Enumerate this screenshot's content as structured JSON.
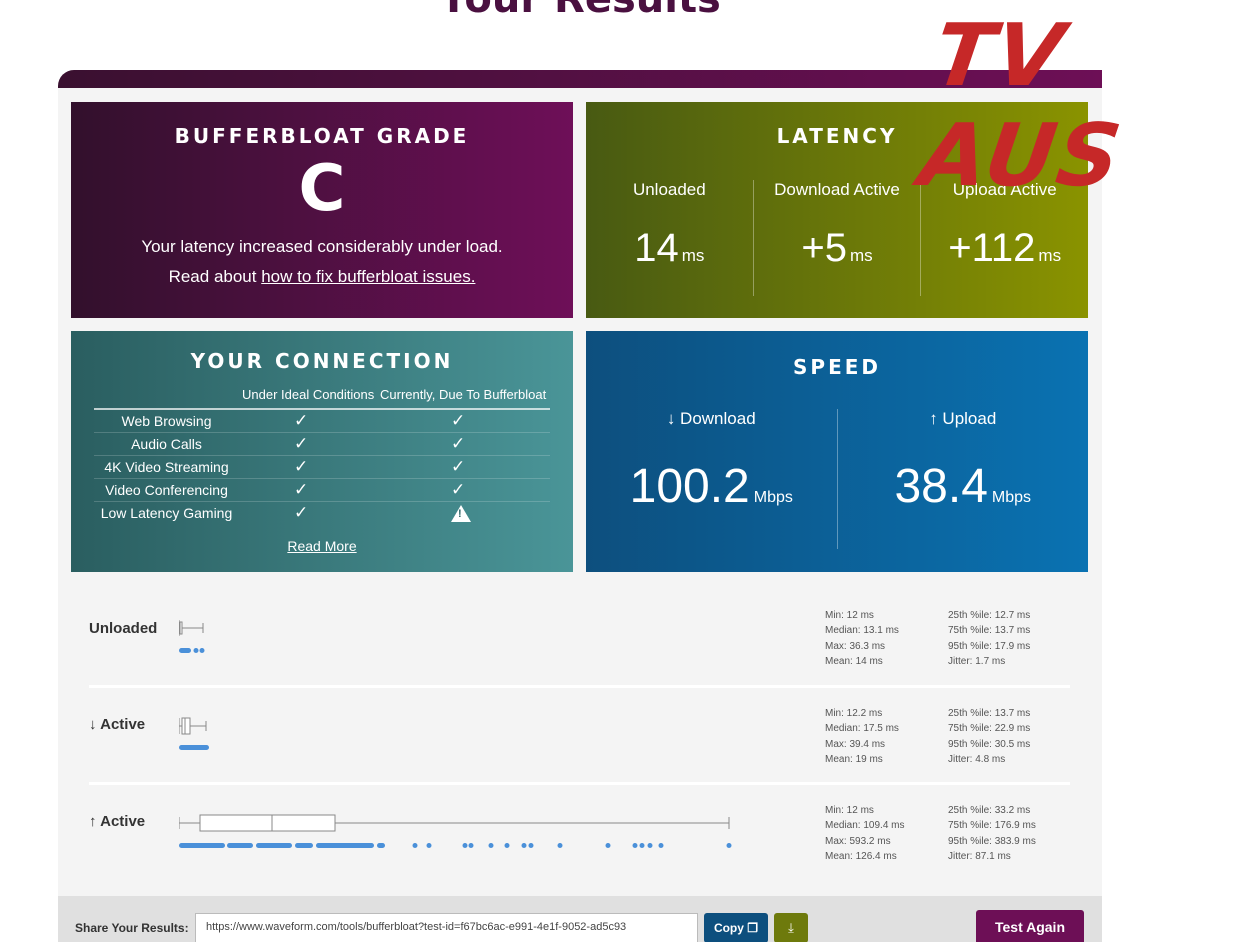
{
  "header": {
    "title": "Your Results",
    "watermark": "TV AUS"
  },
  "grade": {
    "heading": "BUFFERBLOAT GRADE",
    "letter": "C",
    "message": "Your latency increased considerably under load.",
    "read_prefix": "Read about ",
    "read_link": "how to fix bufferbloat issues."
  },
  "latency": {
    "heading": "LATENCY",
    "columns": [
      {
        "label": "Unloaded",
        "value": "14",
        "unit": "ms"
      },
      {
        "label": "Download Active",
        "value": "+5",
        "unit": "ms"
      },
      {
        "label": "Upload Active",
        "value": "+112",
        "unit": "ms"
      }
    ]
  },
  "connection": {
    "heading": "YOUR CONNECTION",
    "col_ideal": "Under Ideal Conditions",
    "col_current": "Currently, Due To Bufferbloat",
    "rows": [
      {
        "name": "Web Browsing",
        "ideal": "ok",
        "current": "ok"
      },
      {
        "name": "Audio Calls",
        "ideal": "ok",
        "current": "ok"
      },
      {
        "name": "4K Video Streaming",
        "ideal": "ok",
        "current": "ok"
      },
      {
        "name": "Video Conferencing",
        "ideal": "ok",
        "current": "ok"
      },
      {
        "name": "Low Latency Gaming",
        "ideal": "ok",
        "current": "warning"
      }
    ],
    "read_more": "Read More"
  },
  "speed": {
    "heading": "SPEED",
    "download": {
      "label": "↓ Download",
      "value": "100.2",
      "unit": "Mbps"
    },
    "upload": {
      "label": "↑ Upload",
      "value": "38.4",
      "unit": "Mbps"
    }
  },
  "stats": [
    {
      "label": "Unloaded",
      "min": "Min: 12 ms",
      "median": "Median: 13.1 ms",
      "max": "Max: 36.3 ms",
      "mean": "Mean: 14 ms",
      "p25": "25th %ile: 12.7 ms",
      "p75": "75th %ile: 13.7 ms",
      "p95": "95th %ile: 17.9 ms",
      "jitter": "Jitter: 1.7 ms"
    },
    {
      "label": "↓ Active",
      "min": "Min: 12.2 ms",
      "median": "Median: 17.5 ms",
      "max": "Max: 39.4 ms",
      "mean": "Mean: 19 ms",
      "p25": "25th %ile: 13.7 ms",
      "p75": "75th %ile: 22.9 ms",
      "p95": "95th %ile: 30.5 ms",
      "jitter": "Jitter: 4.8 ms"
    },
    {
      "label": "↑ Active",
      "min": "Min: 12 ms",
      "median": "Median: 109.4 ms",
      "max": "Max: 593.2 ms",
      "mean": "Mean: 126.4 ms",
      "p25": "25th %ile: 33.2 ms",
      "p75": "75th %ile: 176.9 ms",
      "p95": "95th %ile: 383.9 ms",
      "jitter": "Jitter: 87.1 ms"
    }
  ],
  "share": {
    "label": "Share Your Results:",
    "url": "https://www.waveform.com/tools/bufferbloat?test-id=f67bc6ac-e991-4e1f-9052-ad5c93",
    "copy_label": "Copy",
    "download_icon": "download-icon",
    "test_again": "Test Again"
  },
  "colors": {
    "grade_bg": "#6e0f58",
    "latency_bg": "#8a9300",
    "connection_bg": "#4a9598",
    "speed_bg": "#0a72b2",
    "dot_color": "#4a90d9",
    "test_again_bg": "#6d0f56"
  }
}
